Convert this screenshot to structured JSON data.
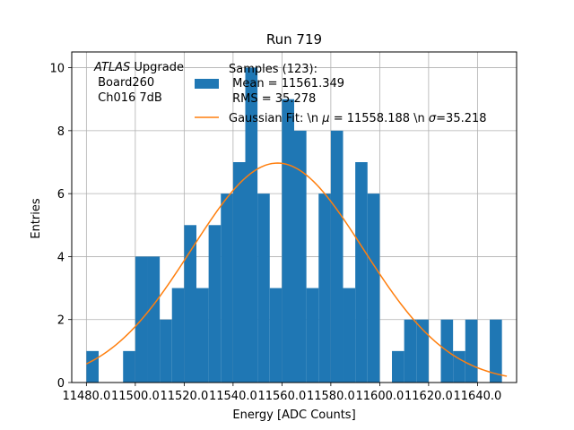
{
  "chart_data": {
    "type": "bar",
    "title": "Run 719",
    "xlabel": "Energy [ADC Counts]",
    "ylabel": "Entries",
    "xlim": [
      11474,
      11656
    ],
    "ylim": [
      0,
      10.5
    ],
    "x_ticks": [
      11480.0,
      11500.0,
      11520.0,
      11540.0,
      11560.0,
      11580.0,
      11600.0,
      11620.0,
      11640.0
    ],
    "x_tick_labels": [
      "11480.0",
      "11500.0",
      "11520.0",
      "11540.0",
      "11560.0",
      "11580.0",
      "11600.0",
      "11620.0",
      "11640.0"
    ],
    "y_ticks": [
      0,
      2,
      4,
      6,
      8,
      10
    ],
    "y_tick_labels": [
      "0",
      "2",
      "4",
      "6",
      "8",
      "10"
    ],
    "grid": true,
    "bin_width": 5,
    "histogram": {
      "bin_edges": [
        11480,
        11485,
        11490,
        11495,
        11500,
        11505,
        11510,
        11515,
        11520,
        11525,
        11530,
        11535,
        11540,
        11545,
        11550,
        11555,
        11560,
        11565,
        11570,
        11575,
        11580,
        11585,
        11590,
        11595,
        11600,
        11605,
        11610,
        11615,
        11620,
        11625,
        11630,
        11635,
        11640,
        11645,
        11650
      ],
      "counts": [
        1,
        0,
        0,
        1,
        4,
        4,
        2,
        3,
        5,
        3,
        5,
        6,
        7,
        10,
        6,
        3,
        9,
        8,
        3,
        6,
        8,
        3,
        7,
        6,
        0,
        1,
        2,
        2,
        0,
        2,
        1,
        2,
        0,
        2,
        1
      ]
    },
    "series": [
      {
        "name": "Samples (123):\n Mean = 11561.349\n RMS = 35.278",
        "legend_lines": [
          "Samples (123):",
          " Mean = 11561.349",
          " RMS = 35.278"
        ],
        "kind": "histogram",
        "color": "#1f77b4"
      },
      {
        "name": "Gaussian Fit: \\n μ = 11558.188 \\n σ=35.218",
        "kind": "line",
        "color": "#ff7f0e",
        "amplitude": 6.97,
        "mu": 11558.188,
        "sigma": 35.218,
        "x_range": [
          11480,
          11652
        ]
      }
    ],
    "legend": {
      "placement": "top-right",
      "entries": [
        {
          "lines": [
            "Samples (123):",
            " Mean = 11561.349",
            " RMS = 35.278"
          ]
        },
        {
          "prefix": "Gaussian Fit: \\n ",
          "mu_symbol": "μ",
          "mu_part": " = 11558.188 \\n ",
          "sigma_symbol": "σ",
          "sigma_part": "=35.218"
        }
      ]
    },
    "annotation": {
      "placement": "top-left",
      "italic": "ATLAS",
      "line1_rest": " Upgrade",
      "line2": " Board260",
      "line3": " Ch016 7dB"
    }
  }
}
